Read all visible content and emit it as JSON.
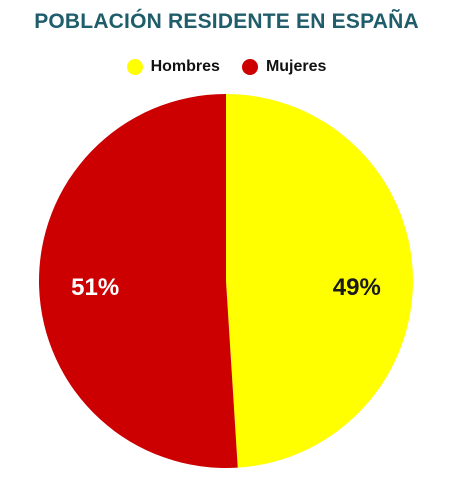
{
  "chart_data": {
    "type": "pie",
    "title": "POBLACIÓN RESIDENTE EN ESPAÑA",
    "legend_position": "top",
    "slices": [
      {
        "name": "Hombres",
        "value": 49,
        "label": "49%",
        "color": "#ffff00",
        "label_color": "#1a1a1a"
      },
      {
        "name": "Mujeres",
        "value": 51,
        "label": "51%",
        "color": "#cc0000",
        "label_color": "#ffffff"
      }
    ]
  }
}
